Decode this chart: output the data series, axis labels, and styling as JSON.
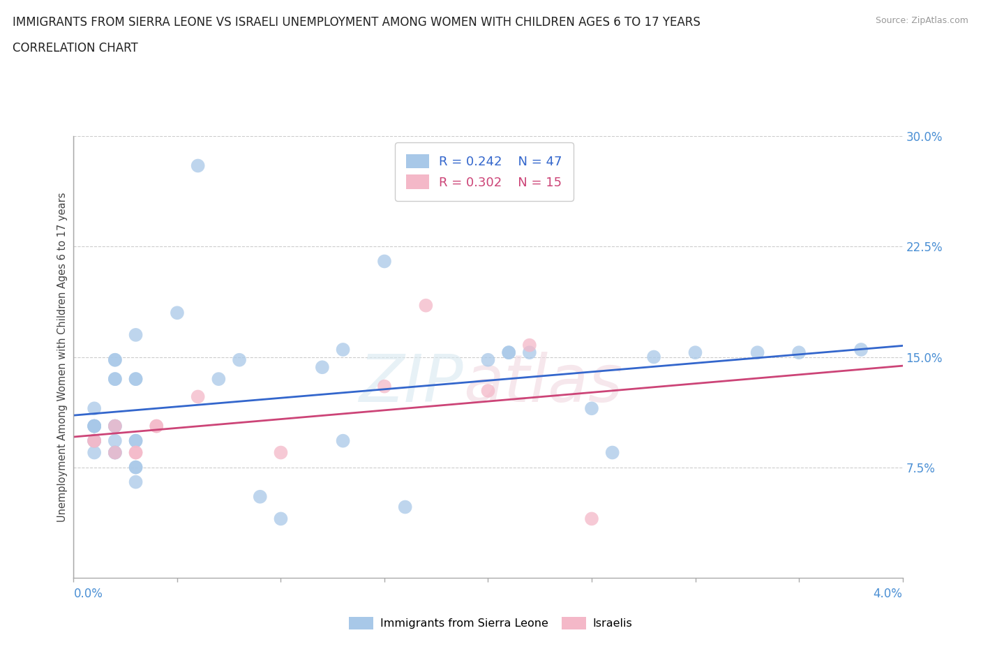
{
  "title_line1": "IMMIGRANTS FROM SIERRA LEONE VS ISRAELI UNEMPLOYMENT AMONG WOMEN WITH CHILDREN AGES 6 TO 17 YEARS",
  "title_line2": "CORRELATION CHART",
  "source": "Source: ZipAtlas.com",
  "ylabel": "Unemployment Among Women with Children Ages 6 to 17 years",
  "legend_label1": "Immigrants from Sierra Leone",
  "legend_label2": "Israelis",
  "r1": "0.242",
  "n1": "47",
  "r2": "0.302",
  "n2": "15",
  "blue_color": "#a8c8e8",
  "pink_color": "#f4b8c8",
  "blue_line_color": "#3366cc",
  "pink_line_color": "#cc4477",
  "blue_scatter": [
    [
      0.001,
      0.103
    ],
    [
      0.001,
      0.103
    ],
    [
      0.001,
      0.103
    ],
    [
      0.001,
      0.103
    ],
    [
      0.001,
      0.115
    ],
    [
      0.001,
      0.093
    ],
    [
      0.001,
      0.093
    ],
    [
      0.001,
      0.085
    ],
    [
      0.002,
      0.103
    ],
    [
      0.002,
      0.148
    ],
    [
      0.002,
      0.148
    ],
    [
      0.002,
      0.135
    ],
    [
      0.002,
      0.135
    ],
    [
      0.002,
      0.093
    ],
    [
      0.002,
      0.085
    ],
    [
      0.002,
      0.085
    ],
    [
      0.002,
      0.103
    ],
    [
      0.003,
      0.165
    ],
    [
      0.003,
      0.135
    ],
    [
      0.003,
      0.135
    ],
    [
      0.003,
      0.093
    ],
    [
      0.003,
      0.093
    ],
    [
      0.003,
      0.075
    ],
    [
      0.003,
      0.075
    ],
    [
      0.003,
      0.065
    ],
    [
      0.005,
      0.18
    ],
    [
      0.006,
      0.28
    ],
    [
      0.007,
      0.135
    ],
    [
      0.008,
      0.148
    ],
    [
      0.009,
      0.055
    ],
    [
      0.01,
      0.04
    ],
    [
      0.012,
      0.143
    ],
    [
      0.013,
      0.155
    ],
    [
      0.013,
      0.093
    ],
    [
      0.015,
      0.215
    ],
    [
      0.016,
      0.048
    ],
    [
      0.02,
      0.148
    ],
    [
      0.021,
      0.153
    ],
    [
      0.021,
      0.153
    ],
    [
      0.022,
      0.153
    ],
    [
      0.025,
      0.115
    ],
    [
      0.026,
      0.085
    ],
    [
      0.028,
      0.15
    ],
    [
      0.03,
      0.153
    ],
    [
      0.033,
      0.153
    ],
    [
      0.035,
      0.153
    ],
    [
      0.038,
      0.155
    ]
  ],
  "pink_scatter": [
    [
      0.001,
      0.093
    ],
    [
      0.001,
      0.093
    ],
    [
      0.002,
      0.103
    ],
    [
      0.002,
      0.085
    ],
    [
      0.003,
      0.085
    ],
    [
      0.003,
      0.085
    ],
    [
      0.004,
      0.103
    ],
    [
      0.004,
      0.103
    ],
    [
      0.006,
      0.123
    ],
    [
      0.01,
      0.085
    ],
    [
      0.015,
      0.13
    ],
    [
      0.017,
      0.185
    ],
    [
      0.02,
      0.127
    ],
    [
      0.022,
      0.158
    ],
    [
      0.025,
      0.04
    ]
  ],
  "xmin": 0.0,
  "xmax": 0.04,
  "ymin": 0.0,
  "ymax": 0.3,
  "yticks": [
    0.075,
    0.15,
    0.225,
    0.3
  ],
  "ytick_labels": [
    "7.5%",
    "15.0%",
    "22.5%",
    "30.0%"
  ],
  "grid_color": "#cccccc",
  "background_color": "#ffffff",
  "watermark_zip": "ZIP",
  "watermark_atlas": "atlas"
}
